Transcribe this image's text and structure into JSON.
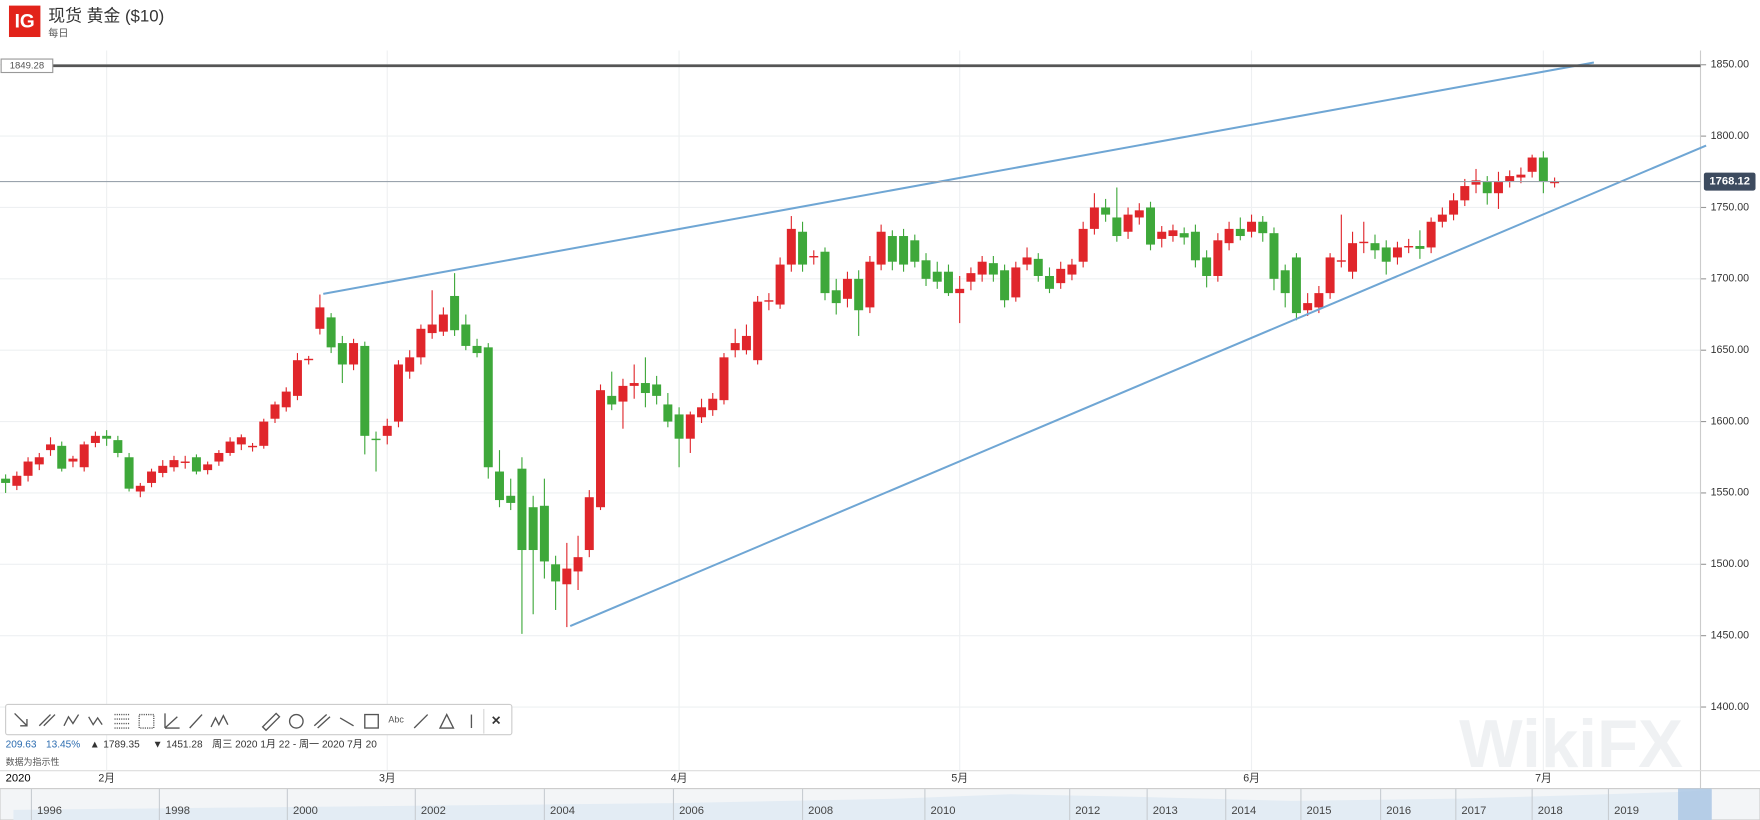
{
  "chart_data": {
    "type": "candlestick",
    "logo": "IG",
    "title": "现货 黄金 ($10)",
    "subtitle": "每日",
    "up_color": "#e0262b",
    "down_color": "#3ea83a",
    "grid": true,
    "ylim": [
      1357,
      1860
    ],
    "yticks": [
      {
        "value": 1400,
        "label": "1400.00"
      },
      {
        "value": 1450,
        "label": "1450.00"
      },
      {
        "value": 1500,
        "label": "1500.00"
      },
      {
        "value": 1550,
        "label": "1550.00"
      },
      {
        "value": 1600,
        "label": "1600.00"
      },
      {
        "value": 1650,
        "label": "1650.00"
      },
      {
        "value": 1700,
        "label": "1700.00"
      },
      {
        "value": 1750,
        "label": "1750.00"
      },
      {
        "value": 1800,
        "label": "1800.00"
      },
      {
        "value": 1850,
        "label": "1850.00"
      }
    ],
    "categories": [
      "2020",
      null,
      null,
      null,
      null,
      null,
      null,
      null,
      null,
      "2月",
      null,
      null,
      null,
      null,
      null,
      null,
      null,
      null,
      null,
      null,
      null,
      null,
      null,
      null,
      null,
      null,
      null,
      null,
      null,
      null,
      null,
      null,
      null,
      null,
      "3月",
      null,
      null,
      null,
      null,
      null,
      null,
      null,
      null,
      null,
      null,
      null,
      null,
      null,
      null,
      null,
      null,
      null,
      null,
      null,
      null,
      null,
      null,
      null,
      null,
      null,
      "4月",
      null,
      null,
      null,
      null,
      null,
      null,
      null,
      null,
      null,
      null,
      null,
      null,
      null,
      null,
      null,
      null,
      null,
      null,
      null,
      null,
      null,
      null,
      null,
      null,
      "5月",
      null,
      null,
      null,
      null,
      null,
      null,
      null,
      null,
      null,
      null,
      null,
      null,
      null,
      null,
      null,
      null,
      null,
      null,
      null,
      null,
      null,
      null,
      null,
      null,
      null,
      "6月",
      null,
      null,
      null,
      null,
      null,
      null,
      null,
      null,
      null,
      null,
      null,
      null,
      null,
      null,
      null,
      null,
      null,
      null,
      null,
      null,
      null,
      null,
      null,
      null,
      null,
      "7月",
      null
    ],
    "candles": [
      {
        "open": 1560,
        "high": 1563,
        "low": 1550,
        "close": 1557
      },
      {
        "open": 1555,
        "high": 1565,
        "low": 1552,
        "close": 1562
      },
      {
        "open": 1562,
        "high": 1575,
        "low": 1558,
        "close": 1572
      },
      {
        "open": 1570,
        "high": 1578,
        "low": 1566,
        "close": 1575
      },
      {
        "open": 1580,
        "high": 1589,
        "low": 1576,
        "close": 1584
      },
      {
        "open": 1583,
        "high": 1586,
        "low": 1565,
        "close": 1567
      },
      {
        "open": 1572,
        "high": 1576,
        "low": 1568,
        "close": 1574
      },
      {
        "open": 1568,
        "high": 1586,
        "low": 1565,
        "close": 1584
      },
      {
        "open": 1585,
        "high": 1593,
        "low": 1582,
        "close": 1590
      },
      {
        "open": 1590,
        "high": 1594,
        "low": 1583,
        "close": 1588
      },
      {
        "open": 1587,
        "high": 1590,
        "low": 1575,
        "close": 1578
      },
      {
        "open": 1575,
        "high": 1578,
        "low": 1551,
        "close": 1553
      },
      {
        "open": 1551,
        "high": 1557,
        "low": 1547,
        "close": 1555
      },
      {
        "open": 1557,
        "high": 1567,
        "low": 1554,
        "close": 1565
      },
      {
        "open": 1564,
        "high": 1573,
        "low": 1561,
        "close": 1569
      },
      {
        "open": 1568,
        "high": 1576,
        "low": 1565,
        "close": 1573
      },
      {
        "open": 1571,
        "high": 1576,
        "low": 1567,
        "close": 1572
      },
      {
        "open": 1575,
        "high": 1577,
        "low": 1563,
        "close": 1565
      },
      {
        "open": 1566,
        "high": 1572,
        "low": 1563,
        "close": 1570
      },
      {
        "open": 1572,
        "high": 1580,
        "low": 1569,
        "close": 1578
      },
      {
        "open": 1578,
        "high": 1589,
        "low": 1576,
        "close": 1586
      },
      {
        "open": 1584,
        "high": 1591,
        "low": 1580,
        "close": 1589
      },
      {
        "open": 1582,
        "high": 1585,
        "low": 1579,
        "close": 1583
      },
      {
        "open": 1583,
        "high": 1602,
        "low": 1581,
        "close": 1600
      },
      {
        "open": 1602,
        "high": 1614,
        "low": 1599,
        "close": 1612
      },
      {
        "open": 1610,
        "high": 1624,
        "low": 1607,
        "close": 1621
      },
      {
        "open": 1618,
        "high": 1648,
        "low": 1615,
        "close": 1643
      },
      {
        "open": 1643,
        "high": 1646,
        "low": 1640,
        "close": 1644
      },
      {
        "open": 1665,
        "high": 1689,
        "low": 1661,
        "close": 1680
      },
      {
        "open": 1673,
        "high": 1676,
        "low": 1648,
        "close": 1652
      },
      {
        "open": 1655,
        "high": 1660,
        "low": 1627,
        "close": 1640
      },
      {
        "open": 1640,
        "high": 1658,
        "low": 1636,
        "close": 1655
      },
      {
        "open": 1653,
        "high": 1656,
        "low": 1577,
        "close": 1590
      },
      {
        "open": 1588,
        "high": 1593,
        "low": 1565,
        "close": 1587
      },
      {
        "open": 1590,
        "high": 1602,
        "low": 1584,
        "close": 1597
      },
      {
        "open": 1600,
        "high": 1643,
        "low": 1596,
        "close": 1640
      },
      {
        "open": 1635,
        "high": 1650,
        "low": 1630,
        "close": 1645
      },
      {
        "open": 1645,
        "high": 1668,
        "low": 1640,
        "close": 1665
      },
      {
        "open": 1662,
        "high": 1692,
        "low": 1658,
        "close": 1668
      },
      {
        "open": 1663,
        "high": 1680,
        "low": 1660,
        "close": 1675
      },
      {
        "open": 1688,
        "high": 1704,
        "low": 1660,
        "close": 1664
      },
      {
        "open": 1668,
        "high": 1675,
        "low": 1650,
        "close": 1653
      },
      {
        "open": 1653,
        "high": 1658,
        "low": 1645,
        "close": 1648
      },
      {
        "open": 1652,
        "high": 1655,
        "low": 1560,
        "close": 1568
      },
      {
        "open": 1565,
        "high": 1580,
        "low": 1540,
        "close": 1545
      },
      {
        "open": 1548,
        "high": 1560,
        "low": 1538,
        "close": 1543
      },
      {
        "open": 1567,
        "high": 1575,
        "low": 1451.28,
        "close": 1510
      },
      {
        "open": 1540,
        "high": 1548,
        "low": 1465,
        "close": 1510
      },
      {
        "open": 1541,
        "high": 1560,
        "low": 1490,
        "close": 1502
      },
      {
        "open": 1500,
        "high": 1506,
        "low": 1468,
        "close": 1488
      },
      {
        "open": 1486,
        "high": 1515,
        "low": 1456,
        "close": 1497
      },
      {
        "open": 1495,
        "high": 1520,
        "low": 1482,
        "close": 1505
      },
      {
        "open": 1510,
        "high": 1552,
        "low": 1505,
        "close": 1547
      },
      {
        "open": 1540,
        "high": 1626,
        "low": 1538,
        "close": 1622
      },
      {
        "open": 1618,
        "high": 1635,
        "low": 1608,
        "close": 1612
      },
      {
        "open": 1614,
        "high": 1630,
        "low": 1595,
        "close": 1625
      },
      {
        "open": 1625,
        "high": 1640,
        "low": 1616,
        "close": 1627
      },
      {
        "open": 1627,
        "high": 1645,
        "low": 1610,
        "close": 1620
      },
      {
        "open": 1626,
        "high": 1632,
        "low": 1612,
        "close": 1618
      },
      {
        "open": 1612,
        "high": 1620,
        "low": 1596,
        "close": 1600
      },
      {
        "open": 1605,
        "high": 1610,
        "low": 1568,
        "close": 1588
      },
      {
        "open": 1588,
        "high": 1607,
        "low": 1578,
        "close": 1605
      },
      {
        "open": 1603,
        "high": 1616,
        "low": 1599,
        "close": 1610
      },
      {
        "open": 1608,
        "high": 1620,
        "low": 1604,
        "close": 1616
      },
      {
        "open": 1615,
        "high": 1648,
        "low": 1612,
        "close": 1645
      },
      {
        "open": 1650,
        "high": 1665,
        "low": 1645,
        "close": 1655
      },
      {
        "open": 1650,
        "high": 1668,
        "low": 1647,
        "close": 1660
      },
      {
        "open": 1643,
        "high": 1688,
        "low": 1640,
        "close": 1684
      },
      {
        "open": 1684,
        "high": 1690,
        "low": 1678,
        "close": 1685
      },
      {
        "open": 1682,
        "high": 1715,
        "low": 1679,
        "close": 1710
      },
      {
        "open": 1710,
        "high": 1744,
        "low": 1705,
        "close": 1735
      },
      {
        "open": 1733,
        "high": 1740,
        "low": 1705,
        "close": 1710
      },
      {
        "open": 1715,
        "high": 1720,
        "low": 1710,
        "close": 1716
      },
      {
        "open": 1719,
        "high": 1722,
        "low": 1685,
        "close": 1690
      },
      {
        "open": 1692,
        "high": 1700,
        "low": 1675,
        "close": 1683
      },
      {
        "open": 1686,
        "high": 1705,
        "low": 1680,
        "close": 1700
      },
      {
        "open": 1700,
        "high": 1706,
        "low": 1660,
        "close": 1678
      },
      {
        "open": 1680,
        "high": 1716,
        "low": 1676,
        "close": 1712
      },
      {
        "open": 1710,
        "high": 1738,
        "low": 1706,
        "close": 1733
      },
      {
        "open": 1730,
        "high": 1734,
        "low": 1706,
        "close": 1712
      },
      {
        "open": 1730,
        "high": 1735,
        "low": 1705,
        "close": 1710
      },
      {
        "open": 1727,
        "high": 1731,
        "low": 1708,
        "close": 1712
      },
      {
        "open": 1713,
        "high": 1718,
        "low": 1695,
        "close": 1700
      },
      {
        "open": 1705,
        "high": 1712,
        "low": 1693,
        "close": 1698
      },
      {
        "open": 1705,
        "high": 1710,
        "low": 1688,
        "close": 1690
      },
      {
        "open": 1690,
        "high": 1702,
        "low": 1669,
        "close": 1693
      },
      {
        "open": 1698,
        "high": 1708,
        "low": 1692,
        "close": 1704
      },
      {
        "open": 1703,
        "high": 1716,
        "low": 1698,
        "close": 1712
      },
      {
        "open": 1711,
        "high": 1716,
        "low": 1698,
        "close": 1703
      },
      {
        "open": 1706,
        "high": 1710,
        "low": 1680,
        "close": 1685
      },
      {
        "open": 1687,
        "high": 1712,
        "low": 1684,
        "close": 1708
      },
      {
        "open": 1710,
        "high": 1722,
        "low": 1706,
        "close": 1715
      },
      {
        "open": 1714,
        "high": 1718,
        "low": 1698,
        "close": 1702
      },
      {
        "open": 1702,
        "high": 1708,
        "low": 1690,
        "close": 1693
      },
      {
        "open": 1697,
        "high": 1712,
        "low": 1693,
        "close": 1707
      },
      {
        "open": 1703,
        "high": 1714,
        "low": 1699,
        "close": 1710
      },
      {
        "open": 1712,
        "high": 1740,
        "low": 1708,
        "close": 1735
      },
      {
        "open": 1735,
        "high": 1760,
        "low": 1731,
        "close": 1750
      },
      {
        "open": 1750,
        "high": 1756,
        "low": 1740,
        "close": 1745
      },
      {
        "open": 1743,
        "high": 1764,
        "low": 1726,
        "close": 1730
      },
      {
        "open": 1733,
        "high": 1750,
        "low": 1728,
        "close": 1745
      },
      {
        "open": 1743,
        "high": 1753,
        "low": 1738,
        "close": 1748
      },
      {
        "open": 1750,
        "high": 1754,
        "low": 1720,
        "close": 1724
      },
      {
        "open": 1728,
        "high": 1737,
        "low": 1722,
        "close": 1733
      },
      {
        "open": 1730,
        "high": 1738,
        "low": 1726,
        "close": 1734
      },
      {
        "open": 1732,
        "high": 1736,
        "low": 1724,
        "close": 1729
      },
      {
        "open": 1733,
        "high": 1738,
        "low": 1708,
        "close": 1713
      },
      {
        "open": 1715,
        "high": 1720,
        "low": 1694,
        "close": 1702
      },
      {
        "open": 1702,
        "high": 1732,
        "low": 1698,
        "close": 1727
      },
      {
        "open": 1725,
        "high": 1740,
        "low": 1720,
        "close": 1735
      },
      {
        "open": 1735,
        "high": 1743,
        "low": 1727,
        "close": 1730
      },
      {
        "open": 1733,
        "high": 1745,
        "low": 1729,
        "close": 1740
      },
      {
        "open": 1740,
        "high": 1744,
        "low": 1726,
        "close": 1732
      },
      {
        "open": 1732,
        "high": 1736,
        "low": 1692,
        "close": 1700
      },
      {
        "open": 1706,
        "high": 1710,
        "low": 1680,
        "close": 1690
      },
      {
        "open": 1715,
        "high": 1718,
        "low": 1671,
        "close": 1676
      },
      {
        "open": 1678,
        "high": 1690,
        "low": 1674,
        "close": 1683
      },
      {
        "open": 1680,
        "high": 1695,
        "low": 1676,
        "close": 1690
      },
      {
        "open": 1690,
        "high": 1718,
        "low": 1686,
        "close": 1715
      },
      {
        "open": 1712,
        "high": 1745,
        "low": 1708,
        "close": 1713
      },
      {
        "open": 1705,
        "high": 1733,
        "low": 1700,
        "close": 1725
      },
      {
        "open": 1725,
        "high": 1740,
        "low": 1718,
        "close": 1726
      },
      {
        "open": 1725,
        "high": 1731,
        "low": 1714,
        "close": 1720
      },
      {
        "open": 1722,
        "high": 1727,
        "low": 1703,
        "close": 1712
      },
      {
        "open": 1715,
        "high": 1726,
        "low": 1710,
        "close": 1722
      },
      {
        "open": 1722,
        "high": 1728,
        "low": 1718,
        "close": 1723
      },
      {
        "open": 1723,
        "high": 1734,
        "low": 1714,
        "close": 1721
      },
      {
        "open": 1722,
        "high": 1743,
        "low": 1718,
        "close": 1740
      },
      {
        "open": 1740,
        "high": 1750,
        "low": 1736,
        "close": 1745
      },
      {
        "open": 1745,
        "high": 1760,
        "low": 1741,
        "close": 1755
      },
      {
        "open": 1755,
        "high": 1770,
        "low": 1751,
        "close": 1765
      },
      {
        "open": 1766,
        "high": 1777,
        "low": 1760,
        "close": 1769
      },
      {
        "open": 1768,
        "high": 1772,
        "low": 1752,
        "close": 1760
      },
      {
        "open": 1760,
        "high": 1775,
        "low": 1749,
        "close": 1768
      },
      {
        "open": 1768,
        "high": 1776,
        "low": 1764,
        "close": 1772
      },
      {
        "open": 1771,
        "high": 1778,
        "low": 1767,
        "close": 1773
      },
      {
        "open": 1775,
        "high": 1787,
        "low": 1771,
        "close": 1785
      },
      {
        "open": 1785,
        "high": 1789.35,
        "low": 1760,
        "close": 1768
      },
      {
        "open": 1767,
        "high": 1771,
        "low": 1764,
        "close": 1768.12
      }
    ],
    "price_lines": [
      {
        "value": 1849.28,
        "color": "#555555"
      },
      {
        "value": 1768.12,
        "color": "#9aa3ad"
      }
    ],
    "trendlines": [
      {
        "x": [
          28.3,
          141.5
        ],
        "y": [
          1689.5,
          1851.6
        ]
      },
      {
        "x": [
          50.3,
          151.5
        ],
        "y": [
          1456.7,
          1793.4
        ]
      }
    ],
    "trendline_color": "#6fa6d4"
  },
  "stats": {
    "change": "209.63",
    "change_pct": "13.45%",
    "high": "1789.35",
    "low": "1451.28",
    "range": "周三 2020 1月 22 - 周一 2020 7月 20",
    "note": "数据为指示性"
  },
  "navigator": {
    "years": [
      "1996",
      "1998",
      "2000",
      "2002",
      "2004",
      "2006",
      "2008",
      "2010",
      "2012",
      "2013",
      "2014",
      "2015",
      "2016",
      "2017",
      "2018",
      "2019"
    ]
  },
  "watermark": "WikiFX"
}
